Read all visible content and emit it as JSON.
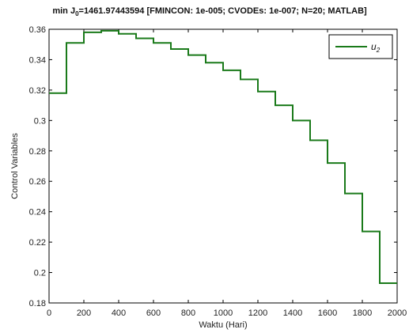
{
  "chart_data": {
    "type": "line",
    "title_prefix": "min J",
    "title_subscript": "0",
    "title_suffix": "=1461.97443594 [FMINCON: 1e-005; CVODEs: 1e-007; N=20; MATLAB]",
    "xlabel": "Waktu (Hari)",
    "ylabel": "Control Variables",
    "xlim": [
      0,
      2000
    ],
    "ylim": [
      0.18,
      0.36
    ],
    "xticks": [
      0,
      200,
      400,
      600,
      800,
      1000,
      1200,
      1400,
      1600,
      1800,
      2000
    ],
    "yticks": [
      0.18,
      0.2,
      0.22,
      0.24,
      0.26,
      0.28,
      0.3,
      0.32,
      0.34,
      0.36
    ],
    "xtick_labels": [
      "0",
      "200",
      "400",
      "600",
      "800",
      "1000",
      "1200",
      "1400",
      "1600",
      "1800",
      "2000"
    ],
    "ytick_labels": [
      "0.18",
      "0.2",
      "0.22",
      "0.24",
      "0.26",
      "0.28",
      "0.3",
      "0.32",
      "0.34",
      "0.36"
    ],
    "grid": false,
    "legend_position": "top-right",
    "series": [
      {
        "name_base": "u",
        "name_subscript": "2",
        "color": "#1a7a1a",
        "step": true,
        "x": [
          0,
          100,
          200,
          300,
          400,
          500,
          600,
          700,
          800,
          900,
          1000,
          1100,
          1200,
          1300,
          1400,
          1500,
          1600,
          1700,
          1800,
          1900,
          2000
        ],
        "values": [
          0.318,
          0.351,
          0.358,
          0.359,
          0.357,
          0.354,
          0.351,
          0.347,
          0.343,
          0.338,
          0.333,
          0.327,
          0.319,
          0.31,
          0.3,
          0.287,
          0.272,
          0.252,
          0.227,
          0.193,
          0.193
        ]
      }
    ]
  }
}
